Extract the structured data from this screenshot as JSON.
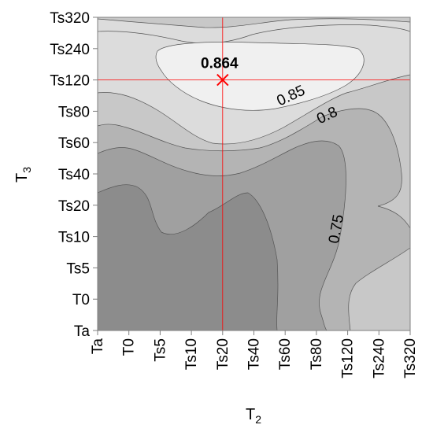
{
  "chart_data": {
    "type": "contour",
    "x_categories": [
      "Ta",
      "T0",
      "Ts5",
      "Ts10",
      "Ts20",
      "Ts40",
      "Ts60",
      "Ts80",
      "Ts120",
      "Ts240",
      "Ts320"
    ],
    "y_categories": [
      "Ta",
      "T0",
      "Ts5",
      "Ts10",
      "Ts20",
      "Ts40",
      "Ts60",
      "Ts80",
      "Ts120",
      "Ts240",
      "Ts320"
    ],
    "xlabel": "T",
    "xlabel_sub": "2",
    "ylabel": "T",
    "ylabel_sub": "3",
    "contour_levels": [
      0.75,
      0.8,
      0.85
    ],
    "contour_labels": [
      "0.75",
      "0.8",
      "0.85"
    ],
    "maximum": {
      "x": "Ts20",
      "y": "Ts120",
      "value": 0.864,
      "label": "0.864"
    },
    "crosshair_color": "#ff0000",
    "fill_colors": [
      "#8c8c8c",
      "#a0a0a0",
      "#b4b4b4",
      "#c8c8c8",
      "#dcdcdc",
      "#f0f0f0"
    ],
    "grid": false
  }
}
